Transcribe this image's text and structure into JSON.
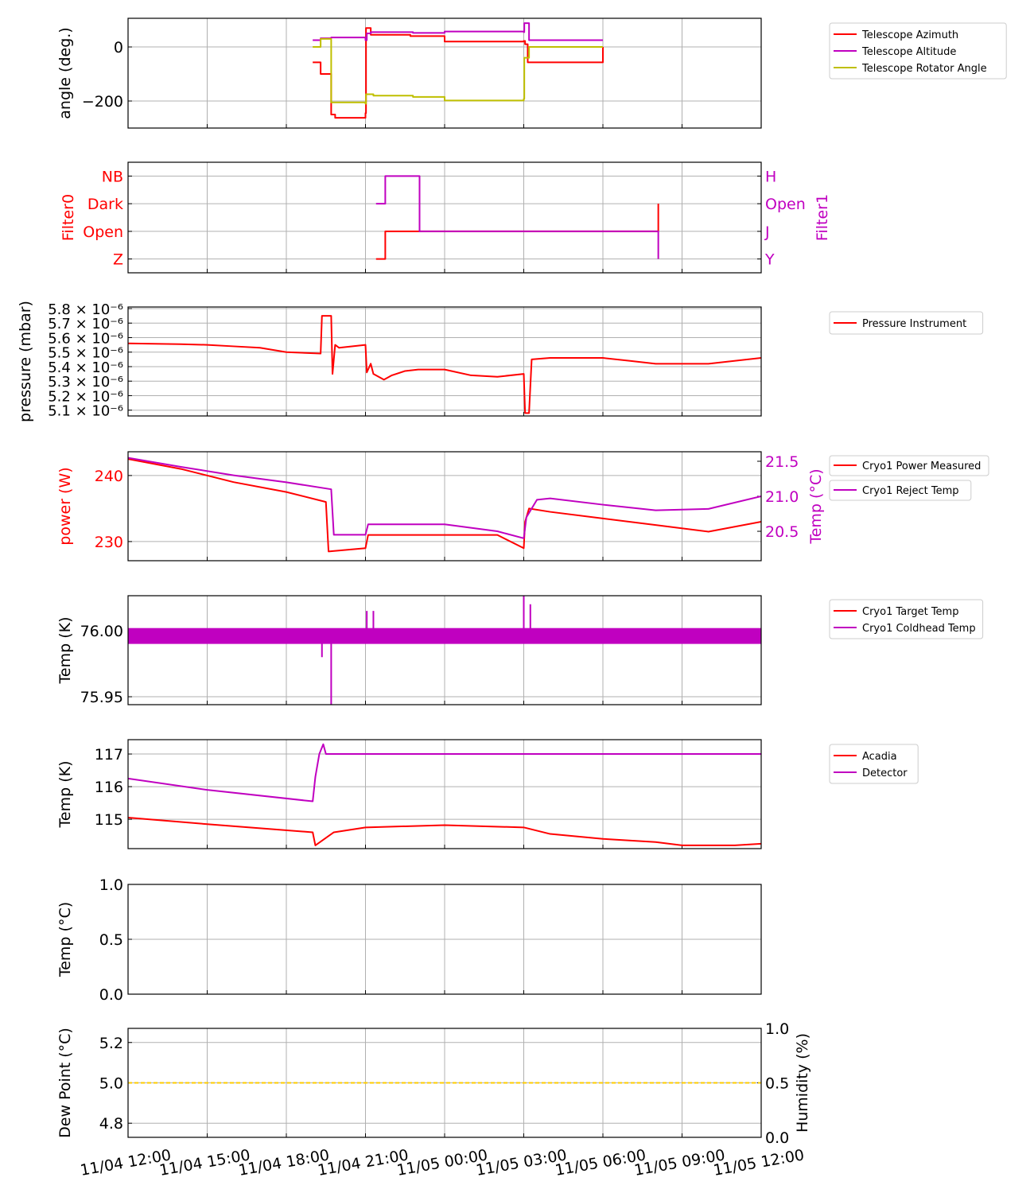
{
  "chart_data": [
    {
      "type": "line",
      "ylabel": "angle (deg.)",
      "ylim": [
        -300,
        106
      ],
      "yticks": [
        {
          "v": 0,
          "label": "0"
        },
        {
          "v": -200,
          "label": "−200"
        }
      ],
      "legend": {
        "placement": "right",
        "entries": [
          "Telescope Azimuth",
          "Telescope Altitude",
          "Telescope Rotator Angle"
        ]
      },
      "series": [
        {
          "name": "Telescope Azimuth",
          "color": "#ff0000",
          "step": true,
          "points": [
            [
              7.0,
              -57
            ],
            [
              7.3,
              -100
            ],
            [
              7.7,
              -250
            ],
            [
              7.85,
              -262
            ],
            [
              9.0,
              -245
            ],
            [
              9.02,
              70
            ],
            [
              9.2,
              45
            ],
            [
              10,
              45
            ],
            [
              10.7,
              40
            ],
            [
              12,
              20
            ],
            [
              15,
              22
            ],
            [
              15.05,
              10
            ],
            [
              15.15,
              -57
            ],
            [
              18,
              -57
            ],
            [
              18,
              0
            ]
          ]
        },
        {
          "name": "Telescope Altitude",
          "color": "#c000c0",
          "step": true,
          "points": [
            [
              7.0,
              25
            ],
            [
              7.3,
              32
            ],
            [
              7.7,
              35
            ],
            [
              9.0,
              25
            ],
            [
              9.05,
              50
            ],
            [
              9.2,
              55
            ],
            [
              10.8,
              52
            ],
            [
              12,
              57
            ],
            [
              15,
              55
            ],
            [
              15.02,
              88
            ],
            [
              15.2,
              25
            ],
            [
              18,
              25
            ]
          ]
        },
        {
          "name": "Telescope Rotator Angle",
          "color": "#bfbf00",
          "step": true,
          "points": [
            [
              7.0,
              0
            ],
            [
              7.3,
              30
            ],
            [
              7.7,
              -205
            ],
            [
              9.0,
              -210
            ],
            [
              9.02,
              -175
            ],
            [
              9.3,
              -180
            ],
            [
              10.8,
              -185
            ],
            [
              12,
              -198
            ],
            [
              15,
              -192
            ],
            [
              15.02,
              -40
            ],
            [
              15.2,
              0
            ],
            [
              18,
              0
            ]
          ]
        }
      ]
    },
    {
      "type": "line",
      "ylabel": "Filter0",
      "ylabel_right": "Filter1",
      "ylim": [
        -0.5,
        3.5
      ],
      "yticks": [
        {
          "v": 0,
          "label": "Z"
        },
        {
          "v": 1,
          "label": "Open"
        },
        {
          "v": 2,
          "label": "Dark"
        },
        {
          "v": 3,
          "label": "NB"
        }
      ],
      "yticks_right": [
        {
          "v": 0,
          "label": "Y"
        },
        {
          "v": 1,
          "label": "J"
        },
        {
          "v": 2,
          "label": "Open"
        },
        {
          "v": 3,
          "label": "H"
        }
      ],
      "series": [
        {
          "name": "Filter0",
          "color": "#ff0000",
          "step": true,
          "points": [
            [
              9.4,
              0
            ],
            [
              9.75,
              1
            ],
            [
              20.1,
              1
            ],
            [
              20.1,
              2
            ]
          ]
        },
        {
          "name": "Filter1",
          "color": "#c000c0",
          "step": true,
          "axis": "right",
          "points": [
            [
              9.4,
              2
            ],
            [
              9.75,
              3
            ],
            [
              11.05,
              1
            ],
            [
              20.1,
              1
            ],
            [
              20.1,
              0
            ]
          ]
        }
      ]
    },
    {
      "type": "line",
      "ylabel": "pressure (mbar)",
      "ylim": [
        5.06,
        5.811
      ],
      "yticks": [
        {
          "v": 5.8,
          "label": "5.8 × 10⁻⁶"
        },
        {
          "v": 5.7,
          "label": "5.7 × 10⁻⁶"
        },
        {
          "v": 5.6,
          "label": "5.6 × 10⁻⁶"
        },
        {
          "v": 5.5,
          "label": "5.5 × 10⁻⁶"
        },
        {
          "v": 5.4,
          "label": "5.4 × 10⁻⁶"
        },
        {
          "v": 5.3,
          "label": "5.3 × 10⁻⁶"
        },
        {
          "v": 5.2,
          "label": "5.2 × 10⁻⁶"
        },
        {
          "v": 5.1,
          "label": "5.1 × 10⁻⁶"
        }
      ],
      "legend": {
        "placement": "right",
        "entries": [
          "Pressure Instrument"
        ]
      },
      "series": [
        {
          "name": "Pressure Instrument",
          "color": "#ff0000",
          "points": [
            [
              0,
              5.56
            ],
            [
              2,
              5.555
            ],
            [
              3,
              5.55
            ],
            [
              4,
              5.54
            ],
            [
              5,
              5.53
            ],
            [
              6,
              5.5
            ],
            [
              7.3,
              5.49
            ],
            [
              7.35,
              5.75
            ],
            [
              7.7,
              5.75
            ],
            [
              7.75,
              5.35
            ],
            [
              7.85,
              5.55
            ],
            [
              8,
              5.53
            ],
            [
              9,
              5.55
            ],
            [
              9.05,
              5.36
            ],
            [
              9.2,
              5.42
            ],
            [
              9.3,
              5.35
            ],
            [
              9.7,
              5.31
            ],
            [
              10,
              5.34
            ],
            [
              10.5,
              5.37
            ],
            [
              11,
              5.38
            ],
            [
              12,
              5.38
            ],
            [
              13,
              5.34
            ],
            [
              14,
              5.33
            ],
            [
              15,
              5.35
            ],
            [
              15.05,
              5.08
            ],
            [
              15.2,
              5.08
            ],
            [
              15.3,
              5.45
            ],
            [
              16,
              5.46
            ],
            [
              18,
              5.46
            ],
            [
              19,
              5.44
            ],
            [
              20,
              5.42
            ],
            [
              22,
              5.42
            ],
            [
              24,
              5.46
            ]
          ]
        }
      ]
    },
    {
      "type": "line",
      "ylabel": "power (W)",
      "ylabel_right": "Temp (°C)",
      "ylim": [
        227.1,
        243.6
      ],
      "ylim_right": [
        20.08,
        21.636
      ],
      "yticks": [
        {
          "v": 240,
          "label": "240"
        },
        {
          "v": 230,
          "label": "230"
        }
      ],
      "yticks_right": [
        {
          "v": 21.5,
          "label": "21.5"
        },
        {
          "v": 21.0,
          "label": "21.0"
        },
        {
          "v": 20.5,
          "label": "20.5"
        }
      ],
      "legend": {
        "placement": "right",
        "entries": [
          "Cryo1 Power Measured",
          "Cryo1 Reject Temp"
        ]
      },
      "series": [
        {
          "name": "Cryo1 Power Measured",
          "color": "#ff0000",
          "points": [
            [
              0,
              242.5
            ],
            [
              2,
              241
            ],
            [
              4,
              239
            ],
            [
              6,
              237.5
            ],
            [
              7.5,
              236
            ],
            [
              7.6,
              228.5
            ],
            [
              9,
              229
            ],
            [
              9.1,
              231
            ],
            [
              12,
              231
            ],
            [
              14,
              231
            ],
            [
              15,
              229
            ],
            [
              15.05,
              233
            ],
            [
              15.2,
              235
            ],
            [
              16,
              234.5
            ],
            [
              18,
              233.5
            ],
            [
              20,
              232.5
            ],
            [
              22,
              231.5
            ],
            [
              24,
              233
            ]
          ]
        },
        {
          "name": "Cryo1 Reject Temp",
          "color": "#c000c0",
          "axis": "right",
          "points": [
            [
              0,
              21.55
            ],
            [
              2,
              21.42
            ],
            [
              4,
              21.3
            ],
            [
              6,
              21.2
            ],
            [
              7.7,
              21.1
            ],
            [
              7.8,
              20.45
            ],
            [
              9,
              20.45
            ],
            [
              9.1,
              20.6
            ],
            [
              12,
              20.6
            ],
            [
              14,
              20.5
            ],
            [
              15,
              20.4
            ],
            [
              15.1,
              20.7
            ],
            [
              15.5,
              20.95
            ],
            [
              16,
              20.97
            ],
            [
              18,
              20.88
            ],
            [
              20,
              20.8
            ],
            [
              22,
              20.82
            ],
            [
              24,
              21.0
            ]
          ]
        }
      ]
    },
    {
      "type": "line",
      "ylabel": "Temp (K)",
      "ylim": [
        75.944,
        76.0265
      ],
      "yticks": [
        {
          "v": 76.0,
          "label": "76.00"
        },
        {
          "v": 75.95,
          "label": "75.95"
        }
      ],
      "legend": {
        "placement": "right",
        "entries": [
          "Cryo1 Target Temp",
          "Cryo1 Coldhead Temp"
        ]
      },
      "series": [
        {
          "name": "Cryo1 Target Temp",
          "color": "#ff0000",
          "points": [
            [
              0,
              76.0
            ],
            [
              24,
              76.0
            ]
          ]
        },
        {
          "name": "Cryo1 Coldhead Temp",
          "color": "#c000c0",
          "band": [
            75.99,
            76.002
          ],
          "points": [
            [
              7.35,
              75.98
            ],
            [
              7.7,
              75.944
            ],
            [
              9.05,
              76.015
            ],
            [
              9.3,
              76.015
            ],
            [
              15.0,
              76.027
            ],
            [
              15.25,
              76.02
            ]
          ]
        }
      ]
    },
    {
      "type": "line",
      "ylabel": "Temp (K)",
      "ylim": [
        114.1,
        117.44
      ],
      "yticks": [
        {
          "v": 117,
          "label": "117"
        },
        {
          "v": 116,
          "label": "116"
        },
        {
          "v": 115,
          "label": "115"
        }
      ],
      "legend": {
        "placement": "right",
        "entries": [
          "Acadia",
          "Detector"
        ]
      },
      "series": [
        {
          "name": "Acadia",
          "color": "#ff0000",
          "points": [
            [
              0,
              115.05
            ],
            [
              3,
              114.85
            ],
            [
              7,
              114.6
            ],
            [
              7.1,
              114.2
            ],
            [
              7.8,
              114.6
            ],
            [
              9,
              114.75
            ],
            [
              12,
              114.82
            ],
            [
              15,
              114.75
            ],
            [
              16,
              114.55
            ],
            [
              18,
              114.4
            ],
            [
              20,
              114.3
            ],
            [
              21,
              114.2
            ],
            [
              23,
              114.2
            ],
            [
              24,
              114.25
            ]
          ]
        },
        {
          "name": "Detector",
          "color": "#c000c0",
          "points": [
            [
              0,
              116.25
            ],
            [
              3,
              115.9
            ],
            [
              7,
              115.55
            ],
            [
              7.1,
              116.3
            ],
            [
              7.25,
              117.0
            ],
            [
              7.4,
              117.3
            ],
            [
              7.5,
              117.0
            ],
            [
              24,
              117.0
            ]
          ]
        }
      ]
    },
    {
      "type": "line",
      "ylabel": "Temp (°C)",
      "ylim": [
        0,
        1
      ],
      "yticks": [
        {
          "v": 1,
          "label": "1.0"
        },
        {
          "v": 0.5,
          "label": "0.5"
        },
        {
          "v": 0,
          "label": "0.0"
        }
      ],
      "series": []
    },
    {
      "type": "line",
      "ylabel": "Dew Point (°C)",
      "ylabel_right": "Humidity (%)",
      "ylim": [
        4.73,
        5.27
      ],
      "ylim_right": [
        0,
        1
      ],
      "yticks": [
        {
          "v": 5.2,
          "label": "5.2"
        },
        {
          "v": 5.0,
          "label": "5.0"
        },
        {
          "v": 4.8,
          "label": "4.8"
        }
      ],
      "yticks_right": [
        {
          "v": 1,
          "label": "1.0"
        },
        {
          "v": 0.5,
          "label": "0.5"
        },
        {
          "v": 0,
          "label": "0.0"
        }
      ],
      "series": [
        {
          "name": "Dew Point",
          "color": "#ffcc00",
          "dashed": true,
          "points": [
            [
              0,
              5.0
            ],
            [
              24,
              5.0
            ]
          ]
        }
      ]
    }
  ],
  "x_axis": {
    "unit": "hours since 11/04 12:00",
    "xlim": [
      0,
      24
    ],
    "ticks": [
      {
        "v": 0,
        "label": "11/04 12:00"
      },
      {
        "v": 3,
        "label": "11/04 15:00"
      },
      {
        "v": 6,
        "label": "11/04 18:00"
      },
      {
        "v": 9,
        "label": "11/04 21:00"
      },
      {
        "v": 12,
        "label": "11/05 00:00"
      },
      {
        "v": 15,
        "label": "11/05 03:00"
      },
      {
        "v": 18,
        "label": "11/05 06:00"
      },
      {
        "v": 21,
        "label": "11/05 09:00"
      },
      {
        "v": 24,
        "label": "11/05 12:00"
      }
    ]
  },
  "colors": {
    "left_label_panel2": "#ff0000",
    "right_label_panel2": "#c000c0",
    "grid": "#b0b0b0"
  }
}
